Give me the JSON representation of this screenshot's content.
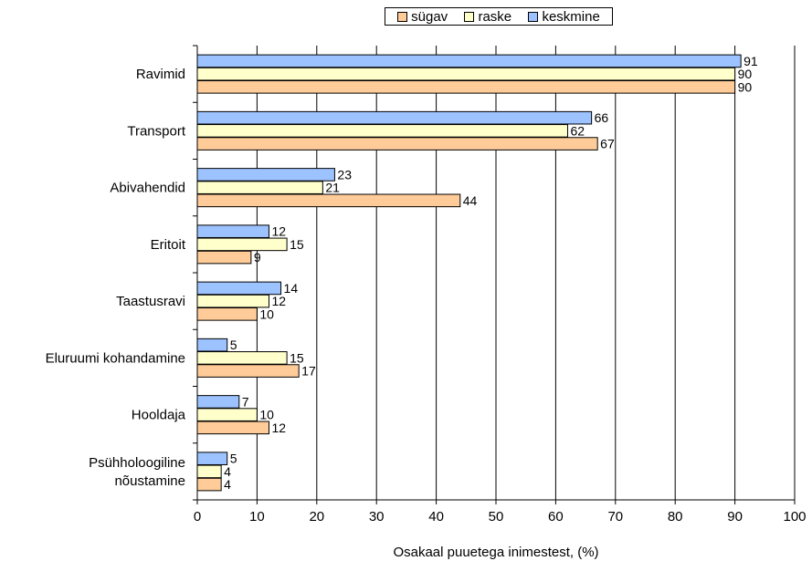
{
  "chart_data": {
    "type": "bar",
    "orientation": "horizontal",
    "title": "",
    "xlabel": "Osakaal puuetega inimestest, (%)",
    "ylabel": "",
    "xlim": [
      0,
      100
    ],
    "xticks": [
      "0",
      "10",
      "20",
      "30",
      "40",
      "50",
      "60",
      "70",
      "80",
      "90",
      "100"
    ],
    "grid": true,
    "legend_position": "top",
    "categories": [
      "Ravimid",
      "Transport",
      "Abivahendid",
      "Eritoit",
      "Taastusravi",
      "Eluruumi kohandamine",
      "Hooldaja",
      "Psühholoogiline nõustamine"
    ],
    "category_lines": [
      [
        "Ravimid"
      ],
      [
        "Transport"
      ],
      [
        "Abivahendid"
      ],
      [
        "Eritoit"
      ],
      [
        "Taastusravi"
      ],
      [
        "Eluruumi kohandamine"
      ],
      [
        "Hooldaja"
      ],
      [
        "Psühholoogiline",
        "nõustamine"
      ]
    ],
    "series": [
      {
        "name": "keskmine",
        "color": "#9cc3ff",
        "values": [
          91,
          66,
          23,
          12,
          14,
          5,
          7,
          5
        ]
      },
      {
        "name": "raske",
        "color": "#ffffcc",
        "values": [
          90,
          62,
          21,
          15,
          12,
          15,
          10,
          4
        ]
      },
      {
        "name": "sügav",
        "color": "#ffcc99",
        "values": [
          90,
          67,
          44,
          9,
          10,
          17,
          12,
          4
        ]
      }
    ],
    "legend_order": [
      "sügav",
      "raske",
      "keskmine"
    ]
  }
}
